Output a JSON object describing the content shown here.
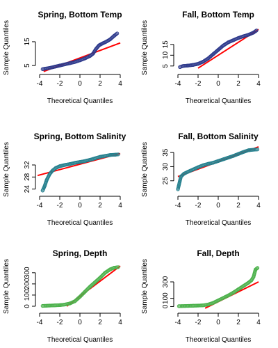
{
  "chart_data": [
    {
      "type": "scatter",
      "title": "Spring, Bottom Temp",
      "xlabel": "Theoretical Quantiles",
      "ylabel": "Sample Quantiles",
      "xlim": [
        -4,
        4
      ],
      "ylim": [
        3,
        22
      ],
      "xticks": [
        -4,
        -2,
        0,
        2,
        4
      ],
      "yticks": [
        5,
        15
      ],
      "point_color": "#2e3a8c",
      "line_color": "#ff0000",
      "series": [
        {
          "x": [
            -3.7,
            -3.0,
            -2.5,
            -2.0,
            -1.5,
            -1.0,
            -0.5,
            0.0,
            0.5,
            1.0,
            1.3,
            1.6,
            1.9,
            2.2,
            2.6,
            3.0,
            3.4,
            3.7
          ],
          "y": [
            3.5,
            4.0,
            4.5,
            5.0,
            5.5,
            6.0,
            6.5,
            7.2,
            8.0,
            9.0,
            10.0,
            12.0,
            13.5,
            14.2,
            15.0,
            16.0,
            17.5,
            18.5
          ]
        }
      ],
      "ref_line": {
        "x": [
          -3.6,
          4.0
        ],
        "y": [
          2.5,
          14.5
        ]
      }
    },
    {
      "type": "scatter",
      "title": "Fall, Bottom Temp",
      "xlabel": "Theoretical Quantiles",
      "ylabel": "Sample Quantiles",
      "xlim": [
        -4,
        4
      ],
      "ylim": [
        3,
        24
      ],
      "xticks": [
        -4,
        -2,
        0,
        2,
        4
      ],
      "yticks": [
        5,
        10,
        15
      ],
      "point_color": "#2e3a8c",
      "line_color": "#ff0000",
      "series": [
        {
          "x": [
            -3.8,
            -3.5,
            -3.0,
            -2.5,
            -2.0,
            -1.5,
            -1.0,
            -0.5,
            0.0,
            0.5,
            1.0,
            1.5,
            2.0,
            2.5,
            3.0,
            3.5,
            3.8
          ],
          "y": [
            4.5,
            5.0,
            5.2,
            5.5,
            6.0,
            7.0,
            8.5,
            10.5,
            12.5,
            14.5,
            16.0,
            17.0,
            18.0,
            18.8,
            19.5,
            20.5,
            21.5
          ]
        }
      ],
      "ref_line": {
        "x": [
          -2.0,
          4.0
        ],
        "y": [
          4.0,
          22.0
        ]
      }
    },
    {
      "type": "scatter",
      "title": "Spring, Bottom Salinity",
      "xlabel": "Theoretical Quantiles",
      "ylabel": "Sample Quantiles",
      "xlim": [
        -4,
        4
      ],
      "ylim": [
        23,
        38
      ],
      "xticks": [
        -4,
        -2,
        0,
        2,
        4
      ],
      "yticks": [
        24,
        28,
        32
      ],
      "point_color": "#26808e",
      "line_color": "#ff0000",
      "series": [
        {
          "x": [
            -3.7,
            -3.5,
            -3.3,
            -3.0,
            -2.7,
            -2.4,
            -2.0,
            -1.5,
            -1.0,
            -0.5,
            0.0,
            0.5,
            1.0,
            1.5,
            2.0,
            2.5,
            3.0,
            3.5,
            3.8
          ],
          "y": [
            23.5,
            25.0,
            27.0,
            29.0,
            30.2,
            31.0,
            31.6,
            32.0,
            32.3,
            32.7,
            33.0,
            33.3,
            33.7,
            34.2,
            34.7,
            35.0,
            35.3,
            35.4,
            35.5
          ]
        }
      ],
      "ref_line": {
        "x": [
          -4.2,
          4.0
        ],
        "y": [
          28.5,
          35.8
        ]
      }
    },
    {
      "type": "scatter",
      "title": "Fall, Bottom Salinity",
      "xlabel": "Theoretical Quantiles",
      "ylabel": "Sample Quantiles",
      "xlim": [
        -4,
        4
      ],
      "ylim": [
        21,
        37
      ],
      "xticks": [
        -4,
        -2,
        0,
        2,
        4
      ],
      "yticks": [
        25,
        30,
        35
      ],
      "point_color": "#26808e",
      "line_color": "#ff0000",
      "series": [
        {
          "x": [
            -4.0,
            -3.7,
            -3.4,
            -3.0,
            -2.5,
            -2.0,
            -1.5,
            -1.0,
            -0.5,
            0.0,
            0.5,
            1.0,
            1.5,
            2.0,
            2.5,
            3.0,
            3.5,
            3.9
          ],
          "y": [
            22.0,
            26.5,
            27.5,
            28.2,
            29.0,
            29.8,
            30.5,
            31.0,
            31.4,
            32.0,
            32.6,
            33.2,
            33.8,
            34.5,
            35.2,
            35.8,
            36.0,
            36.1
          ]
        }
      ],
      "ref_line": {
        "x": [
          -4.0,
          4.0
        ],
        "y": [
          26.5,
          37.0
        ]
      }
    },
    {
      "type": "scatter",
      "title": "Spring, Depth",
      "xlabel": "Theoretical Quantiles",
      "ylabel": "Sample Quantiles",
      "xlim": [
        -4,
        4
      ],
      "ylim": [
        -25,
        380
      ],
      "xticks": [
        -4,
        -2,
        0,
        2,
        4
      ],
      "yticks": [
        0,
        100,
        200,
        300
      ],
      "point_color": "#4db24d",
      "line_color": "#ff0000",
      "series": [
        {
          "x": [
            -3.7,
            -3.0,
            -2.5,
            -2.0,
            -1.5,
            -1.0,
            -0.5,
            0.0,
            0.5,
            1.0,
            1.5,
            2.0,
            2.5,
            3.0,
            3.4,
            3.8
          ],
          "y": [
            3,
            6,
            8,
            10,
            15,
            25,
            45,
            85,
            130,
            175,
            215,
            255,
            300,
            330,
            345,
            350
          ]
        }
      ],
      "ref_line": {
        "x": [
          -1.3,
          4.0
        ],
        "y": [
          0,
          360
        ]
      }
    },
    {
      "type": "scatter",
      "title": "Fall, Depth",
      "xlabel": "Theoretical Quantiles",
      "ylabel": "Sample Quantiles",
      "xlim": [
        -4,
        4
      ],
      "ylim": [
        -30,
        520
      ],
      "xticks": [
        -4,
        -2,
        0,
        2,
        4
      ],
      "yticks": [
        0,
        100,
        300
      ],
      "point_color": "#4db24d",
      "line_color": "#ff0000",
      "series": [
        {
          "x": [
            -3.9,
            -3.0,
            -2.5,
            -2.0,
            -1.5,
            -1.0,
            -0.5,
            0.0,
            0.5,
            1.0,
            1.5,
            2.0,
            2.5,
            3.0,
            3.3,
            3.5,
            3.7,
            3.9
          ],
          "y": [
            5,
            8,
            10,
            12,
            15,
            25,
            45,
            75,
            105,
            135,
            170,
            210,
            250,
            290,
            320,
            360,
            450,
            470
          ]
        }
      ],
      "ref_line": {
        "x": [
          -1.3,
          4.0
        ],
        "y": [
          -20,
          300
        ]
      }
    }
  ]
}
